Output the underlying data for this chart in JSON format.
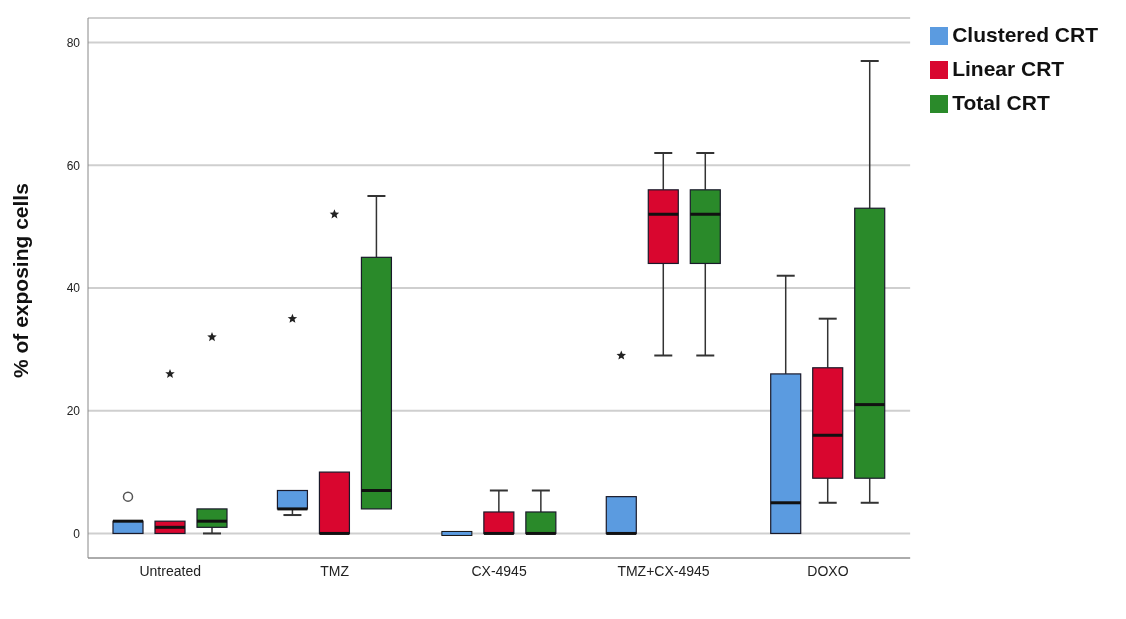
{
  "chart_data": {
    "type": "box",
    "ylabel": "% of exposing cells",
    "categories": [
      "Untreated",
      "TMZ",
      "CX-4945",
      "TMZ+CX-4945",
      "DOXO"
    ],
    "series": [
      {
        "name": "Clustered CRT",
        "color": "#5b9be0",
        "boxes": [
          {
            "low": 0,
            "q1": 0,
            "median": 2,
            "q3": 2,
            "high": 2,
            "outliers": [
              6
            ]
          },
          {
            "low": 3,
            "q1": 4,
            "median": 4,
            "q3": 7,
            "high": 7,
            "outliers": [
              35
            ]
          },
          {
            "low": 0,
            "q1": 0,
            "median": 0,
            "q3": 0,
            "high": 0
          },
          {
            "low": 0,
            "q1": 0,
            "median": 0,
            "q3": 6,
            "high": 6,
            "outliers": [
              29
            ]
          },
          {
            "low": 0,
            "q1": 0,
            "median": 5,
            "q3": 26,
            "high": 42
          }
        ]
      },
      {
        "name": "Linear CRT",
        "color": "#d9062f",
        "boxes": [
          {
            "low": 0,
            "q1": 0,
            "median": 1,
            "q3": 2,
            "high": 2,
            "outliers": [
              26
            ]
          },
          {
            "low": 0,
            "q1": 0,
            "median": 0,
            "q3": 10,
            "high": 10,
            "outliers": [
              52
            ]
          },
          {
            "low": 0,
            "q1": 0,
            "median": 0,
            "q3": 3.5,
            "high": 7
          },
          {
            "low": 29,
            "q1": 44,
            "median": 52,
            "q3": 56,
            "high": 62
          },
          {
            "low": 5,
            "q1": 9,
            "median": 16,
            "q3": 27,
            "high": 35
          }
        ]
      },
      {
        "name": "Total CRT",
        "color": "#2a8a2a",
        "boxes": [
          {
            "low": 0,
            "q1": 1,
            "median": 2,
            "q3": 4,
            "high": 4,
            "outliers": [
              32
            ]
          },
          {
            "low": 4,
            "q1": 4,
            "median": 7,
            "q3": 45,
            "high": 55
          },
          {
            "low": 0,
            "q1": 0,
            "median": 0,
            "q3": 3.5,
            "high": 7
          },
          {
            "low": 29,
            "q1": 44,
            "median": 52,
            "q3": 56,
            "high": 62
          },
          {
            "low": 5,
            "q1": 9,
            "median": 21,
            "q3": 53,
            "high": 77
          }
        ]
      }
    ],
    "ylim": [
      -4,
      84
    ],
    "yticks": [
      0,
      20,
      40,
      60,
      80
    ],
    "grid": "y",
    "legend": "top right"
  }
}
